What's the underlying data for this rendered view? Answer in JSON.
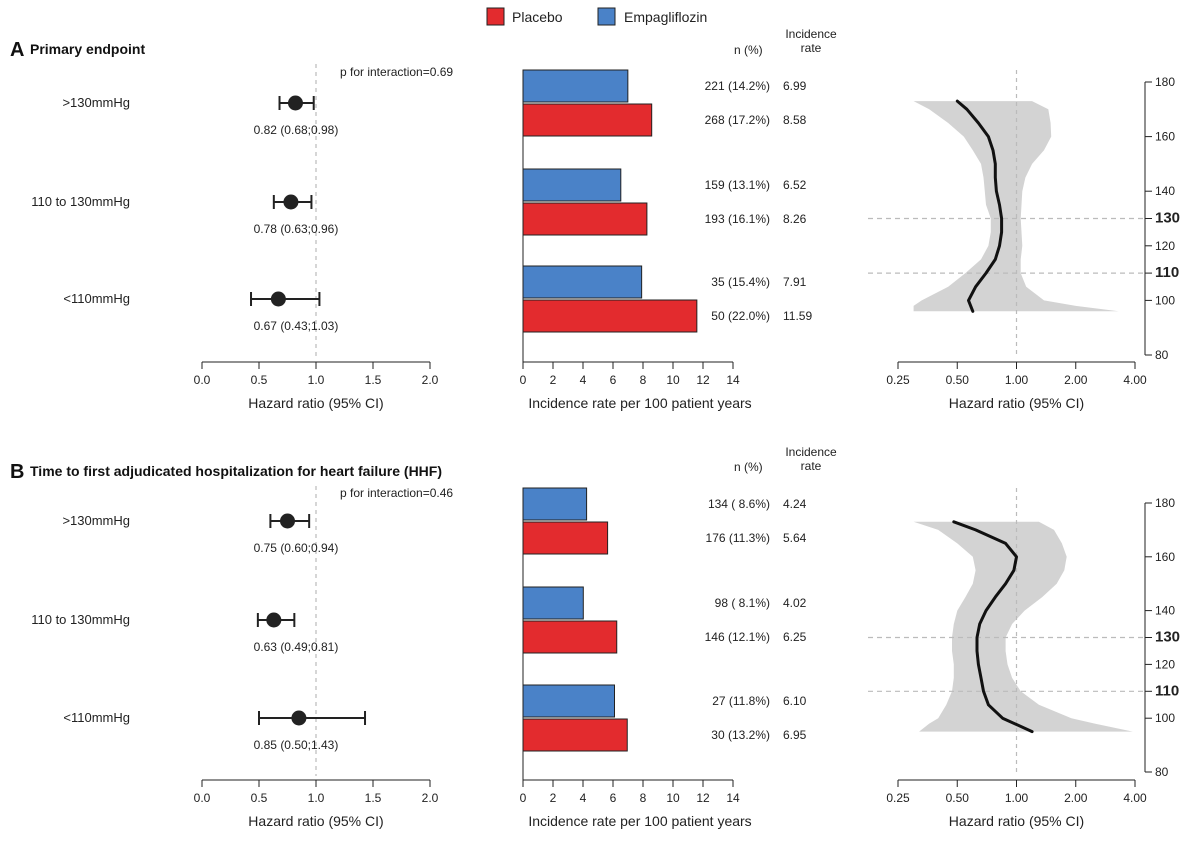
{
  "legend": {
    "placebo": "Placebo",
    "empagliflozin": "Empagliflozin"
  },
  "colors": {
    "placebo": "#e32b2e",
    "empagliflozin": "#4a82c8",
    "band": "#d3d3d3",
    "curve": "#111111",
    "refline": "#bbbbbb"
  },
  "col_headers": {
    "n": "n (%)",
    "incidence_top": "Incidence",
    "incidence_bottom": "rate"
  },
  "chart_data": [
    {
      "type": "forest",
      "panel": "A",
      "title": "Primary endpoint",
      "interaction_label": "p for interaction=0.69",
      "xlabel": "Hazard ratio (95% CI)",
      "xlim": [
        0,
        2
      ],
      "xticks": [
        "0.0",
        "0.5",
        "1.0",
        "1.5",
        "2.0"
      ],
      "rows": [
        {
          "group": ">130mmHg",
          "hr": 0.82,
          "lo": 0.68,
          "hi": 0.98,
          "text": "0.82 (0.68;0.98)"
        },
        {
          "group": "110 to 130mmHg",
          "hr": 0.78,
          "lo": 0.63,
          "hi": 0.96,
          "text": "0.78 (0.63;0.96)"
        },
        {
          "group": "<110mmHg",
          "hr": 0.67,
          "lo": 0.43,
          "hi": 1.03,
          "text": "0.67 (0.43;1.03)"
        }
      ]
    },
    {
      "type": "bar",
      "panel": "A",
      "xlabel": "Incidence rate per 100 patient years",
      "xlim": [
        0,
        14
      ],
      "xticks": [
        "0",
        "2",
        "4",
        "6",
        "8",
        "10",
        "12",
        "14"
      ],
      "categories": [
        ">130mmHg",
        "110 to 130mmHg",
        "<110mmHg"
      ],
      "series": [
        {
          "name": "Empagliflozin",
          "values": [
            6.99,
            6.52,
            7.91
          ],
          "n_text": [
            "221 (14.2%)",
            "159 (13.1%)",
            "35 (15.4%)"
          ],
          "rate_text": [
            "6.99",
            "6.52",
            "7.91"
          ]
        },
        {
          "name": "Placebo",
          "values": [
            8.58,
            8.26,
            11.59
          ],
          "n_text": [
            "268 (17.2%)",
            "193 (16.1%)",
            "50 (22.0%)"
          ],
          "rate_text": [
            "8.58",
            "8.26",
            "11.59"
          ]
        }
      ]
    },
    {
      "type": "line",
      "panel": "A",
      "xlabel": "Hazard ratio (95% CI)",
      "x_scale": "log",
      "xlim": [
        0.25,
        4.0
      ],
      "xticks": [
        "0.25",
        "0.50",
        "1.00",
        "2.00",
        "4.00"
      ],
      "ylim": [
        80,
        180
      ],
      "yticks": [
        "80",
        "100",
        "110",
        "120",
        "130",
        "140",
        "160",
        "180"
      ],
      "bold_yticks": [
        "110",
        "130"
      ],
      "reference_lines_y": [
        110,
        130
      ],
      "reference_line_x": 1.0,
      "curve": [
        {
          "y": 96,
          "hr": 0.6
        },
        {
          "y": 100,
          "hr": 0.57
        },
        {
          "y": 105,
          "hr": 0.62
        },
        {
          "y": 110,
          "hr": 0.7
        },
        {
          "y": 115,
          "hr": 0.78
        },
        {
          "y": 120,
          "hr": 0.82
        },
        {
          "y": 125,
          "hr": 0.84
        },
        {
          "y": 130,
          "hr": 0.84
        },
        {
          "y": 135,
          "hr": 0.82
        },
        {
          "y": 140,
          "hr": 0.79
        },
        {
          "y": 145,
          "hr": 0.78
        },
        {
          "y": 150,
          "hr": 0.78
        },
        {
          "y": 155,
          "hr": 0.76
        },
        {
          "y": 160,
          "hr": 0.72
        },
        {
          "y": 165,
          "hr": 0.64
        },
        {
          "y": 170,
          "hr": 0.56
        },
        {
          "y": 173,
          "hr": 0.5
        }
      ],
      "band": [
        {
          "y": 96,
          "lo": 0.3,
          "hi": 3.3
        },
        {
          "y": 98,
          "lo": 0.3,
          "hi": 2.0
        },
        {
          "y": 100,
          "lo": 0.33,
          "hi": 1.38
        },
        {
          "y": 105,
          "lo": 0.45,
          "hi": 1.12
        },
        {
          "y": 110,
          "lo": 0.55,
          "hi": 1.05
        },
        {
          "y": 115,
          "lo": 0.66,
          "hi": 1.05
        },
        {
          "y": 120,
          "lo": 0.72,
          "hi": 1.07
        },
        {
          "y": 125,
          "lo": 0.74,
          "hi": 1.06
        },
        {
          "y": 130,
          "lo": 0.74,
          "hi": 1.05
        },
        {
          "y": 135,
          "lo": 0.7,
          "hi": 1.06
        },
        {
          "y": 140,
          "lo": 0.69,
          "hi": 1.07
        },
        {
          "y": 145,
          "lo": 0.68,
          "hi": 1.11
        },
        {
          "y": 150,
          "lo": 0.66,
          "hi": 1.2
        },
        {
          "y": 155,
          "lo": 0.6,
          "hi": 1.38
        },
        {
          "y": 160,
          "lo": 0.54,
          "hi": 1.5
        },
        {
          "y": 165,
          "lo": 0.45,
          "hi": 1.49
        },
        {
          "y": 170,
          "lo": 0.36,
          "hi": 1.45
        },
        {
          "y": 173,
          "lo": 0.3,
          "hi": 1.2
        }
      ]
    },
    {
      "type": "forest",
      "panel": "B",
      "title": "Time to first adjudicated hospitalization for heart failure (HHF)",
      "interaction_label": "p for interaction=0.46",
      "xlabel": "Hazard ratio (95% CI)",
      "xlim": [
        0,
        2
      ],
      "xticks": [
        "0.0",
        "0.5",
        "1.0",
        "1.5",
        "2.0"
      ],
      "rows": [
        {
          "group": ">130mmHg",
          "hr": 0.75,
          "lo": 0.6,
          "hi": 0.94,
          "text": "0.75 (0.60;0.94)"
        },
        {
          "group": "110 to 130mmHg",
          "hr": 0.63,
          "lo": 0.49,
          "hi": 0.81,
          "text": "0.63 (0.49;0.81)"
        },
        {
          "group": "<110mmHg",
          "hr": 0.85,
          "lo": 0.5,
          "hi": 1.43,
          "text": "0.85 (0.50;1.43)"
        }
      ]
    },
    {
      "type": "bar",
      "panel": "B",
      "xlabel": "Incidence rate per 100 patient years",
      "xlim": [
        0,
        14
      ],
      "xticks": [
        "0",
        "2",
        "4",
        "6",
        "8",
        "10",
        "12",
        "14"
      ],
      "categories": [
        ">130mmHg",
        "110 to 130mmHg",
        "<110mmHg"
      ],
      "series": [
        {
          "name": "Empagliflozin",
          "values": [
            4.24,
            4.02,
            6.1
          ],
          "n_text": [
            "134 ( 8.6%)",
            "98 ( 8.1%)",
            "27 (11.8%)"
          ],
          "rate_text": [
            "4.24",
            "4.02",
            "6.10"
          ]
        },
        {
          "name": "Placebo",
          "values": [
            5.64,
            6.25,
            6.95
          ],
          "n_text": [
            "176 (11.3%)",
            "146 (12.1%)",
            "30 (13.2%)"
          ],
          "rate_text": [
            "5.64",
            "6.25",
            "6.95"
          ]
        }
      ]
    },
    {
      "type": "line",
      "panel": "B",
      "xlabel": "Hazard ratio (95% CI)",
      "x_scale": "log",
      "xlim": [
        0.25,
        4.0
      ],
      "xticks": [
        "0.25",
        "0.50",
        "1.00",
        "2.00",
        "4.00"
      ],
      "ylim": [
        80,
        180
      ],
      "yticks": [
        "80",
        "100",
        "110",
        "120",
        "130",
        "140",
        "160",
        "180"
      ],
      "bold_yticks": [
        "110",
        "130"
      ],
      "reference_lines_y": [
        110,
        130
      ],
      "reference_line_x": 1.0,
      "curve": [
        {
          "y": 95,
          "hr": 1.2
        },
        {
          "y": 100,
          "hr": 0.85
        },
        {
          "y": 105,
          "hr": 0.72
        },
        {
          "y": 110,
          "hr": 0.68
        },
        {
          "y": 115,
          "hr": 0.66
        },
        {
          "y": 120,
          "hr": 0.64
        },
        {
          "y": 125,
          "hr": 0.63
        },
        {
          "y": 130,
          "hr": 0.63
        },
        {
          "y": 135,
          "hr": 0.65
        },
        {
          "y": 140,
          "hr": 0.7
        },
        {
          "y": 145,
          "hr": 0.78
        },
        {
          "y": 150,
          "hr": 0.88
        },
        {
          "y": 155,
          "hr": 0.97
        },
        {
          "y": 160,
          "hr": 1.0
        },
        {
          "y": 165,
          "hr": 0.88
        },
        {
          "y": 170,
          "hr": 0.62
        },
        {
          "y": 173,
          "hr": 0.48
        }
      ],
      "band": [
        {
          "y": 95,
          "lo": 0.32,
          "hi": 3.9
        },
        {
          "y": 98,
          "lo": 0.36,
          "hi": 2.5
        },
        {
          "y": 100,
          "lo": 0.4,
          "hi": 1.9
        },
        {
          "y": 105,
          "lo": 0.44,
          "hi": 1.3
        },
        {
          "y": 110,
          "lo": 0.47,
          "hi": 1.05
        },
        {
          "y": 115,
          "lo": 0.48,
          "hi": 0.95
        },
        {
          "y": 120,
          "lo": 0.48,
          "hi": 0.9
        },
        {
          "y": 125,
          "lo": 0.47,
          "hi": 0.88
        },
        {
          "y": 130,
          "lo": 0.47,
          "hi": 0.88
        },
        {
          "y": 135,
          "lo": 0.48,
          "hi": 0.95
        },
        {
          "y": 140,
          "lo": 0.5,
          "hi": 1.1
        },
        {
          "y": 145,
          "lo": 0.55,
          "hi": 1.35
        },
        {
          "y": 150,
          "lo": 0.6,
          "hi": 1.6
        },
        {
          "y": 155,
          "lo": 0.62,
          "hi": 1.75
        },
        {
          "y": 160,
          "lo": 0.6,
          "hi": 1.8
        },
        {
          "y": 165,
          "lo": 0.5,
          "hi": 1.7
        },
        {
          "y": 170,
          "lo": 0.4,
          "hi": 1.55
        },
        {
          "y": 173,
          "lo": 0.3,
          "hi": 1.3
        }
      ]
    }
  ]
}
